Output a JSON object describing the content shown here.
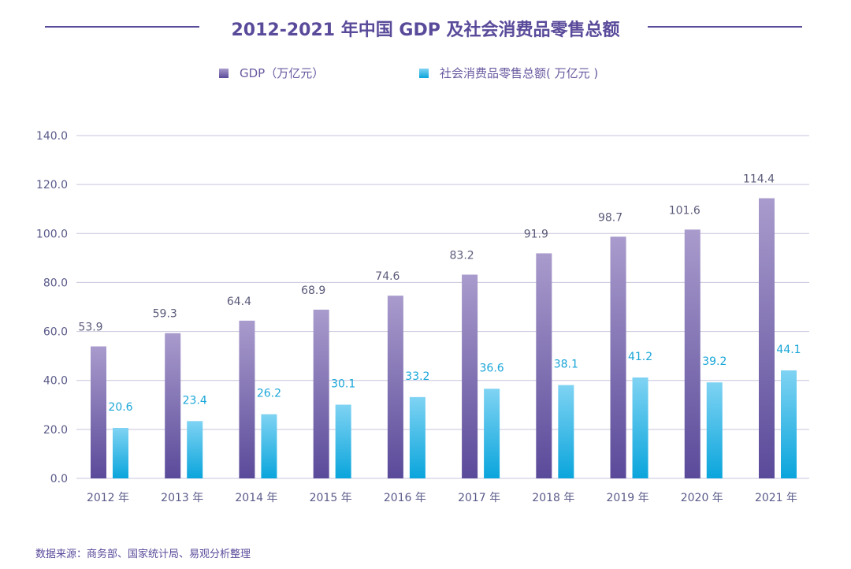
{
  "chart_data": {
    "type": "bar",
    "title": "2012-2021 年中国 GDP 及社会消费品零售总额",
    "categories": [
      "2012 年",
      "2013 年",
      "2014 年",
      "2015 年",
      "2016 年",
      "2017 年",
      "2018 年",
      "2019 年",
      "2020 年",
      "2021 年"
    ],
    "series": [
      {
        "name": "GDP（万亿元）",
        "values": [
          53.9,
          59.3,
          64.4,
          68.9,
          74.6,
          83.2,
          91.9,
          98.7,
          101.6,
          114.4
        ],
        "color_top": "#a99bcc",
        "color_bottom": "#5a4a9a",
        "label_color": "#5a5a7a"
      },
      {
        "name": "社会消费品零售总额( 万亿元 )",
        "values": [
          20.6,
          23.4,
          26.2,
          30.1,
          33.2,
          36.6,
          38.1,
          41.2,
          39.2,
          44.1
        ],
        "color_top": "#7fd3f3",
        "color_bottom": "#0aa5dc",
        "label_color": "#1aa6d8"
      }
    ],
    "y_ticks": [
      "0.0",
      "20.0",
      "40.0",
      "60.0",
      "80.0",
      "100.0",
      "120.0",
      "140.0"
    ],
    "ylim": [
      0,
      140
    ],
    "grid": true,
    "legend_placement": "top-center",
    "xlabel": "",
    "ylabel": ""
  },
  "source": "数据来源：商务部、国家统计局、易观分析整理"
}
